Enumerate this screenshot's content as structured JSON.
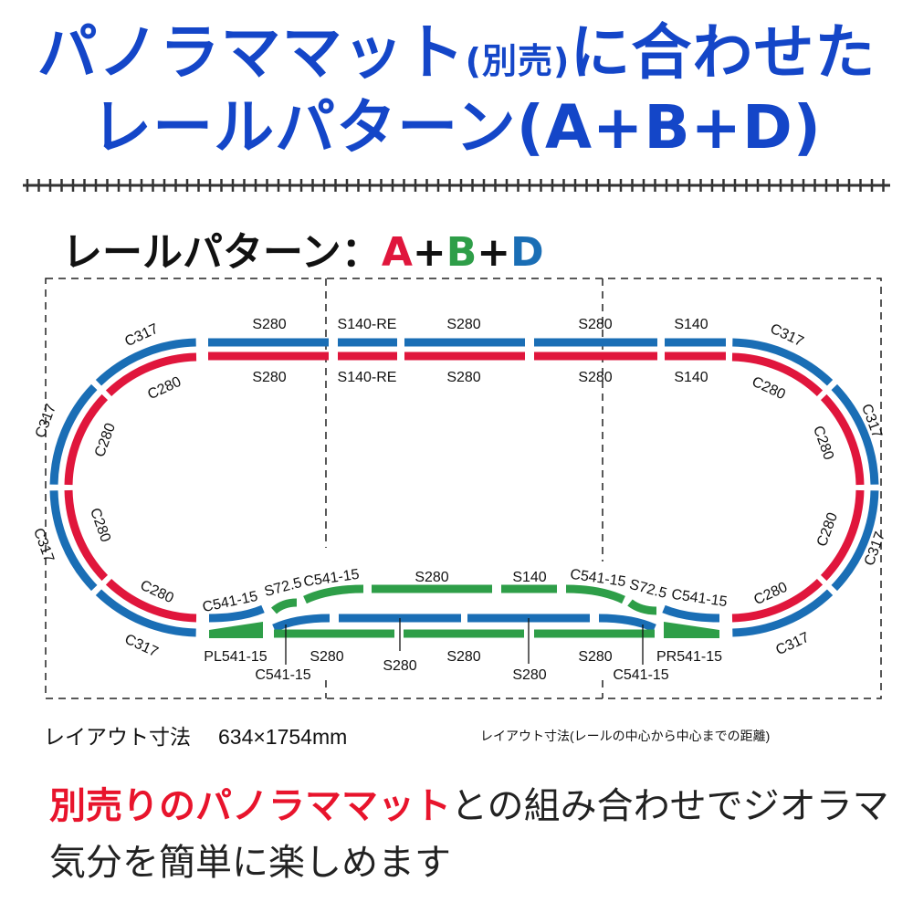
{
  "colors": {
    "title": "#1446c8",
    "rail_a": "#e0163c",
    "rail_b": "#2e9e48",
    "rail_d": "#1a6eb5"
  },
  "title": {
    "line1_a": "パノラママット",
    "line1_small": "(別売)",
    "line1_b": "に合わせた",
    "line2": "レールパターン(A+B+D)"
  },
  "subtitle": {
    "prefix": "レールパターン：",
    "a": "A",
    "plus1": "+",
    "b": "B",
    "plus2": "+",
    "d": "D"
  },
  "labels": [
    "C317",
    "S280",
    "S140-RE",
    "S280",
    "S280",
    "S140",
    "C317",
    "C280",
    "S280",
    "S140-RE",
    "S280",
    "S280",
    "S140",
    "C280",
    "C317",
    "C280",
    "C280",
    "C317",
    "C280",
    "C317",
    "C317",
    "C280",
    "C280",
    "C317",
    "C280",
    "C317",
    "C541-15",
    "S72.5",
    "C541-15",
    "S280",
    "S140",
    "C541-15",
    "S72.5",
    "C541-15",
    "PL541-15",
    "C541-15",
    "S280",
    "S280",
    "S280",
    "S280",
    "S280",
    "C541-15",
    "PR541-15"
  ],
  "dimensions": {
    "label": "レイアウト寸法",
    "value": "634×1754mm",
    "note": "レイアウト寸法(レールの中心から中心までの距離)"
  },
  "bottom": {
    "line1_red": "別売りのパノラママット",
    "line1_rest": "との組み合わせでジオラマ",
    "line2": "気分を簡単に楽しめます"
  }
}
